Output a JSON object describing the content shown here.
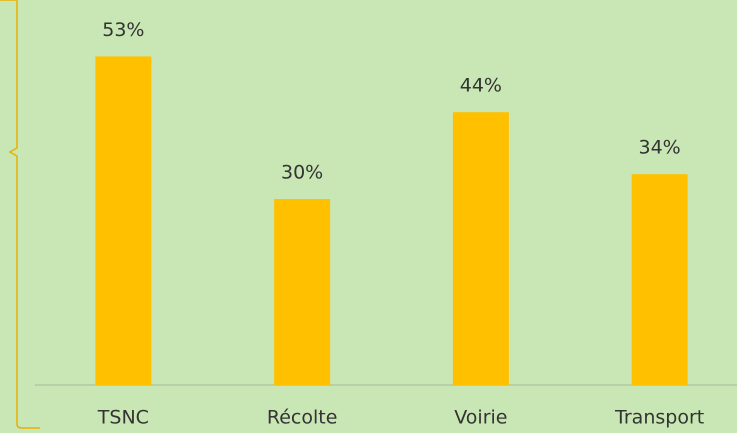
{
  "chart_data": {
    "type": "bar",
    "categories": [
      "TSNC",
      "Récolte",
      "Voirie",
      "Transport"
    ],
    "values": [
      53,
      30,
      44,
      34
    ],
    "value_labels": [
      "53%",
      "30%",
      "44%",
      "34%"
    ],
    "color": "#ffc000"
  }
}
